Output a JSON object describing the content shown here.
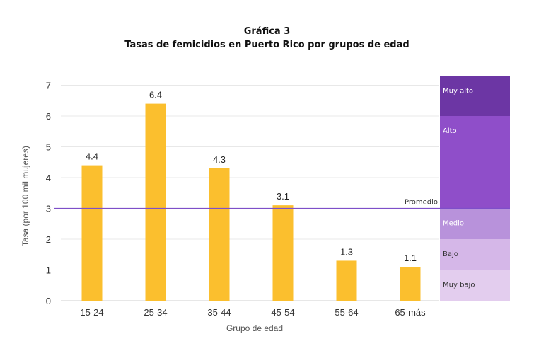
{
  "chart_data": {
    "type": "bar",
    "title": "Gráfica 3",
    "subtitle": "Tasas de femicidios en Puerto Rico por grupos de edad",
    "xlabel": "Grupo de edad",
    "ylabel": "Tasa (por 100 mil mujeres)",
    "categories": [
      "15-24",
      "25-34",
      "35-44",
      "45-54",
      "55-64",
      "65-más"
    ],
    "values": [
      4.4,
      6.4,
      4.3,
      3.1,
      1.3,
      1.1
    ],
    "value_labels": [
      "4.4",
      "6.4",
      "4.3",
      "3.1",
      "1.3",
      "1.1"
    ],
    "yticks": [
      "0",
      "1",
      "2",
      "3",
      "4",
      "5",
      "6",
      "7"
    ],
    "ylim": [
      0,
      7.3
    ],
    "grid": true,
    "bar_color": "#fbbf2e",
    "average": {
      "label": "Promedio",
      "value": 3.0,
      "color": "#7e4fc9"
    },
    "bands": [
      {
        "label": "Muy bajo",
        "from": 0,
        "to": 1,
        "color": "#e3cdee"
      },
      {
        "label": "Bajo",
        "from": 1,
        "to": 2,
        "color": "#d5b7e8"
      },
      {
        "label": "Medio",
        "from": 2,
        "to": 3,
        "color": "#b892db"
      },
      {
        "label": "Alto",
        "from": 3,
        "to": 6,
        "color": "#8f4ec9"
      },
      {
        "label": "Muy alto",
        "from": 6,
        "to": 7.3,
        "color": "#6c36a4"
      }
    ]
  }
}
